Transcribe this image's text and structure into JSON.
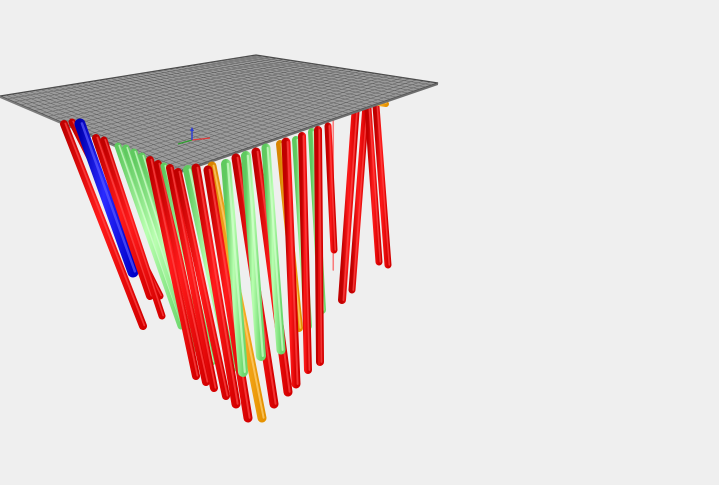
{
  "viewer": {
    "background_color": "#efefef",
    "colors": {
      "red": "#ff0000",
      "green": "#90ee90",
      "orange": "#ffa500",
      "blue": "#0000ff",
      "slab": "#9a9a9a",
      "slab_grid": "#5e5e5e",
      "slab_edge": "#4a4a4a"
    },
    "axis_gizmo": {
      "x_color": "#e23a3a",
      "y_color": "#2e9e2e",
      "z_color": "#2b3bd6"
    }
  }
}
